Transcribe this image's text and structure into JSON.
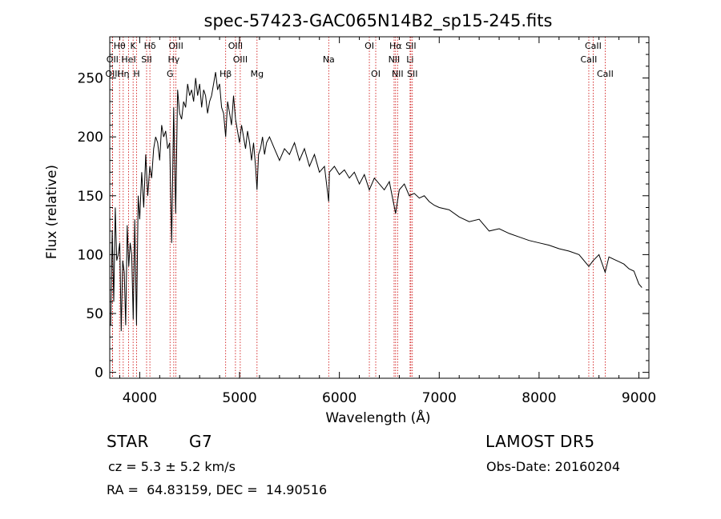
{
  "chart_data": {
    "type": "line",
    "title": "spec-57423-GAC065N14B2_sp15-245.fits",
    "xlabel": "Wavelength (Å)",
    "ylabel": "Flux (relative)",
    "xlim": [
      3700,
      9100
    ],
    "ylim": [
      -5,
      285
    ],
    "x_ticks": [
      4000,
      5000,
      6000,
      7000,
      8000,
      9000
    ],
    "y_ticks": [
      0,
      50,
      100,
      150,
      200,
      250
    ],
    "grid": false,
    "line_color": "#000000",
    "marker_color": "#cc0000",
    "spectrum": {
      "x": [
        3710,
        3725,
        3740,
        3755,
        3770,
        3785,
        3800,
        3815,
        3830,
        3845,
        3860,
        3875,
        3890,
        3905,
        3920,
        3935,
        3950,
        3968,
        3985,
        4000,
        4020,
        4040,
        4060,
        4080,
        4101,
        4120,
        4140,
        4160,
        4180,
        4200,
        4220,
        4240,
        4260,
        4280,
        4300,
        4320,
        4340,
        4360,
        4380,
        4400,
        4420,
        4440,
        4460,
        4480,
        4500,
        4520,
        4540,
        4560,
        4580,
        4600,
        4620,
        4640,
        4660,
        4680,
        4700,
        4720,
        4740,
        4760,
        4780,
        4800,
        4820,
        4840,
        4861,
        4880,
        4900,
        4920,
        4940,
        4960,
        4980,
        5000,
        5020,
        5040,
        5060,
        5080,
        5100,
        5120,
        5140,
        5160,
        5175,
        5190,
        5210,
        5230,
        5250,
        5270,
        5300,
        5350,
        5400,
        5450,
        5500,
        5550,
        5600,
        5650,
        5700,
        5750,
        5800,
        5850,
        5893,
        5900,
        5950,
        6000,
        6050,
        6100,
        6150,
        6200,
        6250,
        6300,
        6350,
        6400,
        6450,
        6500,
        6563,
        6600,
        6650,
        6700,
        6750,
        6800,
        6850,
        6900,
        6950,
        7000,
        7100,
        7200,
        7300,
        7400,
        7500,
        7600,
        7700,
        7800,
        7900,
        8000,
        8100,
        8200,
        8300,
        8400,
        8498,
        8542,
        8600,
        8662,
        8700,
        8750,
        8800,
        8850,
        8900,
        8950,
        9000,
        9030
      ],
      "y": [
        40,
        120,
        60,
        140,
        95,
        100,
        110,
        35,
        95,
        85,
        40,
        125,
        90,
        110,
        100,
        45,
        130,
        40,
        150,
        130,
        170,
        140,
        185,
        150,
        175,
        165,
        190,
        200,
        195,
        180,
        210,
        200,
        205,
        190,
        195,
        110,
        225,
        135,
        240,
        220,
        215,
        230,
        225,
        245,
        235,
        240,
        230,
        250,
        235,
        245,
        225,
        240,
        235,
        220,
        230,
        235,
        245,
        255,
        240,
        245,
        225,
        220,
        200,
        230,
        220,
        210,
        235,
        215,
        205,
        195,
        210,
        200,
        190,
        205,
        195,
        180,
        195,
        175,
        155,
        185,
        190,
        200,
        185,
        195,
        200,
        190,
        180,
        190,
        185,
        195,
        180,
        190,
        175,
        185,
        170,
        175,
        145,
        170,
        175,
        168,
        172,
        165,
        170,
        160,
        168,
        155,
        165,
        160,
        155,
        162,
        135,
        155,
        160,
        150,
        152,
        148,
        150,
        145,
        142,
        140,
        138,
        132,
        128,
        130,
        120,
        122,
        118,
        115,
        112,
        110,
        108,
        105,
        103,
        100,
        90,
        95,
        100,
        85,
        98,
        96,
        94,
        92,
        88,
        86,
        75,
        72
      ]
    },
    "lines": [
      {
        "label": "Hθ",
        "wl": 3798,
        "row": 0
      },
      {
        "label": "K",
        "wl": 3934,
        "row": 0
      },
      {
        "label": "Hδ",
        "wl": 4102,
        "row": 0
      },
      {
        "label": "OIII",
        "wl": 4363,
        "row": 0
      },
      {
        "label": "OIII",
        "wl": 4959,
        "row": 0
      },
      {
        "label": "OI",
        "wl": 6300,
        "row": 0
      },
      {
        "label": "Hα",
        "wl": 6563,
        "row": 0
      },
      {
        "label": "SII",
        "wl": 6716,
        "row": 0
      },
      {
        "label": "CaII",
        "wl": 8542,
        "row": 0
      },
      {
        "label": "OII",
        "wl": 3727,
        "row": 1
      },
      {
        "label": "HeI",
        "wl": 3889,
        "row": 1
      },
      {
        "label": "SII",
        "wl": 4069,
        "row": 1
      },
      {
        "label": "Hγ",
        "wl": 4341,
        "row": 1
      },
      {
        "label": "OIII",
        "wl": 5007,
        "row": 1
      },
      {
        "label": "Na",
        "wl": 5893,
        "row": 1
      },
      {
        "label": "NII",
        "wl": 6548,
        "row": 1
      },
      {
        "label": "Li",
        "wl": 6708,
        "row": 1
      },
      {
        "label": "CaII",
        "wl": 8498,
        "row": 1
      },
      {
        "label": "OIII",
        "wl": 3729,
        "row": 2
      },
      {
        "label": "Hη",
        "wl": 3835,
        "row": 2
      },
      {
        "label": "H",
        "wl": 3969,
        "row": 2
      },
      {
        "label": "G",
        "wl": 4304,
        "row": 2
      },
      {
        "label": "Hβ",
        "wl": 4861,
        "row": 2
      },
      {
        "label": "Mg",
        "wl": 5175,
        "row": 2
      },
      {
        "label": "OI",
        "wl": 6364,
        "row": 2
      },
      {
        "label": "NII",
        "wl": 6583,
        "row": 2
      },
      {
        "label": "SII",
        "wl": 6731,
        "row": 2
      },
      {
        "label": "CaII",
        "wl": 8662,
        "row": 2
      }
    ]
  },
  "info": {
    "class_label": "STAR",
    "subclass": "G7",
    "cz_text": "cz = 5.3 ± 5.2 km/s",
    "coords_text": "RA =  64.83159, DEC =  14.90516",
    "survey": "LAMOST DR5",
    "obs_date": "Obs-Date: 20160204"
  }
}
